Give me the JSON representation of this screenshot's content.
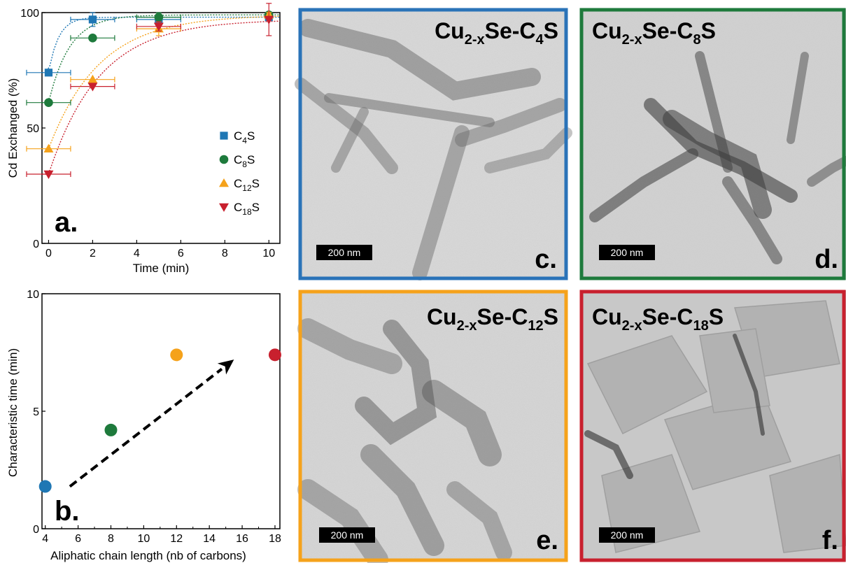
{
  "chart_data": [
    {
      "panel": "a.",
      "type": "scatter",
      "xlabel": "Time (min)",
      "ylabel": "Cd Exchanged (%)",
      "xlim": [
        -0.3,
        10.5
      ],
      "ylim": [
        0,
        100
      ],
      "xticks": [
        "0",
        "2",
        "4",
        "6",
        "8",
        "10"
      ],
      "yticks": [
        "0",
        "50",
        "100"
      ],
      "series": [
        {
          "name": "C4S",
          "name_main": "C",
          "name_sub": "4",
          "name_end": "S",
          "marker": "square",
          "color": "#1f77b4",
          "x": [
            0,
            2,
            5,
            10
          ],
          "y": [
            74,
            97,
            97,
            98
          ],
          "xerr": [
            1,
            1,
            1,
            0
          ],
          "yerr": [
            0,
            3,
            2,
            1
          ],
          "fit_tau": 0.45
        },
        {
          "name": "C8S",
          "name_main": "C",
          "name_sub": "8",
          "name_end": "S",
          "marker": "circle",
          "color": "#1e7a3c",
          "x": [
            0,
            2,
            5,
            10
          ],
          "y": [
            61,
            89,
            98,
            99
          ],
          "xerr": [
            1,
            1,
            1,
            0
          ],
          "yerr": [
            0,
            0,
            2,
            1
          ],
          "fit_tau": 0.95
        },
        {
          "name": "C12S",
          "name_main": "C",
          "name_sub": "12",
          "name_end": "S",
          "marker": "triangle-up",
          "color": "#f5a21b",
          "x": [
            0,
            2,
            5,
            10
          ],
          "y": [
            41,
            71,
            93,
            99
          ],
          "xerr": [
            1,
            1,
            1,
            0
          ],
          "yerr": [
            0,
            0,
            3,
            1
          ],
          "fit_tau": 2.3
        },
        {
          "name": "C18S",
          "name_main": "C",
          "name_sub": "18",
          "name_end": "S",
          "marker": "triangle-down",
          "color": "#c8202e",
          "x": [
            0,
            2,
            5,
            10
          ],
          "y": [
            30,
            68,
            94,
            97
          ],
          "xerr": [
            1,
            1,
            1,
            0
          ],
          "yerr": [
            0,
            0,
            2,
            7
          ],
          "fit_tau": 2.3
        }
      ]
    },
    {
      "panel": "b.",
      "type": "scatter",
      "xlabel": "Aliphatic chain length (nb of carbons)",
      "ylabel": "Characteristic time (min)",
      "xlim": [
        3.8,
        18.3
      ],
      "ylim": [
        0,
        10
      ],
      "xticks": [
        "4",
        "6",
        "8",
        "10",
        "12",
        "14",
        "16",
        "18"
      ],
      "yticks": [
        "0",
        "5",
        "10"
      ],
      "points": [
        {
          "x": 4,
          "y": 1.8,
          "color": "#1f77b4"
        },
        {
          "x": 8,
          "y": 4.2,
          "color": "#1e7a3c"
        },
        {
          "x": 12,
          "y": 7.4,
          "color": "#f5a21b"
        },
        {
          "x": 18,
          "y": 7.4,
          "color": "#c8202e"
        }
      ],
      "trend_arrow": {
        "from": [
          5.5,
          1.8
        ],
        "to": [
          15.5,
          7.2
        ],
        "style": "dashed"
      }
    }
  ],
  "tem_panels": [
    {
      "letter": "c.",
      "title_main": "Cu",
      "title_sub": "2-x",
      "title_mid": "Se-C",
      "title_sub2": "4",
      "title_end": "S",
      "scale": "200 nm",
      "border": "#2a73b8"
    },
    {
      "letter": "d.",
      "title_main": "Cu",
      "title_sub": "2-x",
      "title_mid": "Se-C",
      "title_sub2": "8",
      "title_end": "S",
      "scale": "200 nm",
      "border": "#1e7a3c"
    },
    {
      "letter": "e.",
      "title_main": "Cu",
      "title_sub": "2-x",
      "title_mid": "Se-C",
      "title_sub2": "12",
      "title_end": "S",
      "scale": "200 nm",
      "border": "#f5a21b"
    },
    {
      "letter": "f.",
      "title_main": "Cu",
      "title_sub": "2-x",
      "title_mid": "Se-C",
      "title_sub2": "18",
      "title_end": "S",
      "scale": "200 nm",
      "border": "#c8202e"
    }
  ]
}
